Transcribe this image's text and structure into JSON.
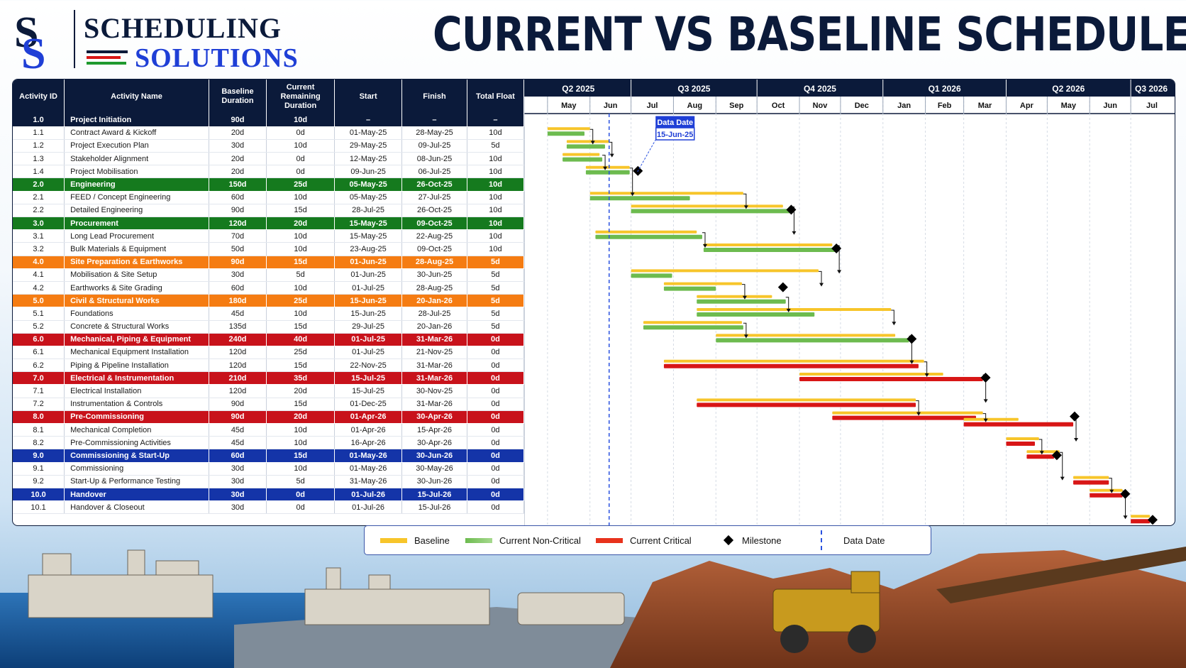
{
  "header": {
    "logo_top": "SCHEDULING",
    "logo_bottom": "SOLUTIONS",
    "title": "CURRENT VS BASELINE SCHEDULE"
  },
  "colors": {
    "navy": "#0b1a3a",
    "baseline": "#f7c52a",
    "noncritical": "#6dbb4f",
    "critical": "#d81616",
    "data_date": "#2a52e0"
  },
  "table": {
    "headers": [
      "Activity ID",
      "Activity Name",
      "Baseline Duration",
      "Current Remaining Duration",
      "Start",
      "Finish",
      "Total Float"
    ],
    "rows": [
      {
        "id": "1.0",
        "name": "Project Initiation",
        "bdur": "90d",
        "crd": "10d",
        "start": "–",
        "finish": "–",
        "float": "–",
        "summary": true,
        "color": "navy"
      },
      {
        "id": "1.1",
        "name": "Contract Award & Kickoff",
        "bdur": "20d",
        "crd": "0d",
        "start": "01-May-25",
        "finish": "28-May-25",
        "float": "10d"
      },
      {
        "id": "1.2",
        "name": "Project Execution Plan",
        "bdur": "30d",
        "crd": "10d",
        "start": "29-May-25",
        "finish": "09-Jul-25",
        "float": "5d"
      },
      {
        "id": "1.3",
        "name": "Stakeholder Alignment",
        "bdur": "20d",
        "crd": "0d",
        "start": "12-May-25",
        "finish": "08-Jun-25",
        "float": "10d"
      },
      {
        "id": "1.4",
        "name": "Project Mobilisation",
        "bdur": "20d",
        "crd": "0d",
        "start": "09-Jun-25",
        "finish": "06-Jul-25",
        "float": "10d"
      },
      {
        "id": "2.0",
        "name": "Engineering",
        "bdur": "150d",
        "crd": "25d",
        "start": "05-May-25",
        "finish": "26-Oct-25",
        "float": "10d",
        "summary": true,
        "color": "green"
      },
      {
        "id": "2.1",
        "name": "FEED / Concept Engineering",
        "bdur": "60d",
        "crd": "10d",
        "start": "05-May-25",
        "finish": "27-Jul-25",
        "float": "10d"
      },
      {
        "id": "2.2",
        "name": "Detailed Engineering",
        "bdur": "90d",
        "crd": "15d",
        "start": "28-Jul-25",
        "finish": "26-Oct-25",
        "float": "10d"
      },
      {
        "id": "3.0",
        "name": "Procurement",
        "bdur": "120d",
        "crd": "20d",
        "start": "15-May-25",
        "finish": "09-Oct-25",
        "float": "10d",
        "summary": true,
        "color": "green"
      },
      {
        "id": "3.1",
        "name": "Long Lead Procurement",
        "bdur": "70d",
        "crd": "10d",
        "start": "15-May-25",
        "finish": "22-Aug-25",
        "float": "10d"
      },
      {
        "id": "3.2",
        "name": "Bulk Materials & Equipment",
        "bdur": "50d",
        "crd": "10d",
        "start": "23-Aug-25",
        "finish": "09-Oct-25",
        "float": "10d"
      },
      {
        "id": "4.0",
        "name": "Site Preparation & Earthworks",
        "bdur": "90d",
        "crd": "15d",
        "start": "01-Jun-25",
        "finish": "28-Aug-25",
        "float": "5d",
        "summary": true,
        "color": "orange"
      },
      {
        "id": "4.1",
        "name": "Mobilisation & Site Setup",
        "bdur": "30d",
        "crd": "5d",
        "start": "01-Jun-25",
        "finish": "30-Jun-25",
        "float": "5d"
      },
      {
        "id": "4.2",
        "name": "Earthworks & Site Grading",
        "bdur": "60d",
        "crd": "10d",
        "start": "01-Jul-25",
        "finish": "28-Aug-25",
        "float": "5d"
      },
      {
        "id": "5.0",
        "name": "Civil & Structural Works",
        "bdur": "180d",
        "crd": "25d",
        "start": "15-Jun-25",
        "finish": "20-Jan-26",
        "float": "5d",
        "summary": true,
        "color": "orange"
      },
      {
        "id": "5.1",
        "name": "Foundations",
        "bdur": "45d",
        "crd": "10d",
        "start": "15-Jun-25",
        "finish": "28-Jul-25",
        "float": "5d"
      },
      {
        "id": "5.2",
        "name": "Concrete & Structural Works",
        "bdur": "135d",
        "crd": "15d",
        "start": "29-Jul-25",
        "finish": "20-Jan-26",
        "float": "5d"
      },
      {
        "id": "6.0",
        "name": "Mechanical, Piping & Equipment",
        "bdur": "240d",
        "crd": "40d",
        "start": "01-Jul-25",
        "finish": "31-Mar-26",
        "float": "0d",
        "summary": true,
        "color": "red"
      },
      {
        "id": "6.1",
        "name": "Mechanical Equipment Installation",
        "bdur": "120d",
        "crd": "25d",
        "start": "01-Jul-25",
        "finish": "21-Nov-25",
        "float": "0d"
      },
      {
        "id": "6.2",
        "name": "Piping & Pipeline Installation",
        "bdur": "120d",
        "crd": "15d",
        "start": "22-Nov-25",
        "finish": "31-Mar-26",
        "float": "0d"
      },
      {
        "id": "7.0",
        "name": "Electrical & Instrumentation",
        "bdur": "210d",
        "crd": "35d",
        "start": "15-Jul-25",
        "finish": "31-Mar-26",
        "float": "0d",
        "summary": true,
        "color": "red"
      },
      {
        "id": "7.1",
        "name": "Electrical Installation",
        "bdur": "120d",
        "crd": "20d",
        "start": "15-Jul-25",
        "finish": "30-Nov-25",
        "float": "0d"
      },
      {
        "id": "7.2",
        "name": "Instrumentation & Controls",
        "bdur": "90d",
        "crd": "15d",
        "start": "01-Dec-25",
        "finish": "31-Mar-26",
        "float": "0d"
      },
      {
        "id": "8.0",
        "name": "Pre-Commissioning",
        "bdur": "90d",
        "crd": "20d",
        "start": "01-Apr-26",
        "finish": "30-Apr-26",
        "float": "0d",
        "summary": true,
        "color": "red"
      },
      {
        "id": "8.1",
        "name": "Mechanical Completion",
        "bdur": "45d",
        "crd": "10d",
        "start": "01-Apr-26",
        "finish": "15-Apr-26",
        "float": "0d"
      },
      {
        "id": "8.2",
        "name": "Pre-Commissioning Activities",
        "bdur": "45d",
        "crd": "10d",
        "start": "16-Apr-26",
        "finish": "30-Apr-26",
        "float": "0d"
      },
      {
        "id": "9.0",
        "name": "Commissioning & Start-Up",
        "bdur": "60d",
        "crd": "15d",
        "start": "01-May-26",
        "finish": "30-Jun-26",
        "float": "0d",
        "summary": true,
        "color": "blue"
      },
      {
        "id": "9.1",
        "name": "Commissioning",
        "bdur": "30d",
        "crd": "10d",
        "start": "01-May-26",
        "finish": "30-May-26",
        "float": "0d"
      },
      {
        "id": "9.2",
        "name": "Start-Up & Performance Testing",
        "bdur": "30d",
        "crd": "5d",
        "start": "31-May-26",
        "finish": "30-Jun-26",
        "float": "0d"
      },
      {
        "id": "10.0",
        "name": "Handover",
        "bdur": "30d",
        "crd": "0d",
        "start": "01-Jul-26",
        "finish": "15-Jul-26",
        "float": "0d",
        "summary": true,
        "color": "blue"
      },
      {
        "id": "10.1",
        "name": "Handover & Closeout",
        "bdur": "30d",
        "crd": "0d",
        "start": "01-Jul-26",
        "finish": "15-Jul-26",
        "float": "0d"
      }
    ]
  },
  "chart_data": {
    "type": "gantt",
    "quarters": [
      "Q2 2025",
      "Q3 2025",
      "Q4 2025",
      "Q1 2026",
      "Q2 2026",
      "Q3 2026"
    ],
    "months": [
      "May",
      "Jun",
      "Jul",
      "Aug",
      "Sep",
      "Oct",
      "Nov",
      "Dec",
      "Jan",
      "Feb",
      "Mar",
      "Apr",
      "May",
      "Jun",
      "Jul"
    ],
    "data_date_label": "Data Date",
    "data_date": "15-Jun-25",
    "tasks": [
      {
        "row": 1,
        "baseline": [
          "2025-05-01",
          "2025-06-01"
        ],
        "current": [
          "2025-05-01",
          "2025-05-28"
        ],
        "status": "noncritical"
      },
      {
        "row": 2,
        "baseline": [
          "2025-05-15",
          "2025-06-15"
        ],
        "current": [
          "2025-05-15",
          "2025-06-12"
        ],
        "status": "noncritical"
      },
      {
        "row": 3,
        "baseline": [
          "2025-05-12",
          "2025-06-08"
        ],
        "current": [
          "2025-05-12",
          "2025-06-10"
        ],
        "status": "noncritical"
      },
      {
        "row": 4,
        "baseline": [
          "2025-05-29",
          "2025-06-30"
        ],
        "current": [
          "2025-05-29",
          "2025-06-30"
        ],
        "status": "noncritical"
      },
      {
        "row": 6,
        "baseline": [
          "2025-06-01",
          "2025-09-21"
        ],
        "current": [
          "2025-06-01",
          "2025-08-13"
        ],
        "status": "noncritical"
      },
      {
        "row": 7,
        "baseline": [
          "2025-07-01",
          "2025-10-20"
        ],
        "current": [
          "2025-07-01",
          "2025-10-26"
        ],
        "status": "noncritical"
      },
      {
        "row": 9,
        "baseline": [
          "2025-06-05",
          "2025-08-18"
        ],
        "current": [
          "2025-06-05",
          "2025-08-22"
        ],
        "status": "noncritical"
      },
      {
        "row": 10,
        "baseline": [
          "2025-08-23",
          "2025-11-25"
        ],
        "current": [
          "2025-08-23",
          "2025-11-28"
        ],
        "status": "noncritical"
      },
      {
        "row": 12,
        "baseline": [
          "2025-07-01",
          "2025-11-15"
        ],
        "current": [
          "2025-07-01",
          "2025-07-31"
        ],
        "status": "noncritical"
      },
      {
        "row": 13,
        "baseline": [
          "2025-07-25",
          "2025-09-20"
        ],
        "current": [
          "2025-07-25",
          "2025-09-01"
        ],
        "status": "noncritical"
      },
      {
        "row": 14,
        "baseline": [
          "2025-08-18",
          "2025-10-12"
        ],
        "current": [
          "2025-08-18",
          "2025-10-22"
        ],
        "status": "noncritical"
      },
      {
        "row": 15,
        "baseline": [
          "2025-08-18",
          "2026-01-07"
        ],
        "current": [
          "2025-08-18",
          "2025-11-12"
        ],
        "status": "noncritical"
      },
      {
        "row": 16,
        "baseline": [
          "2025-07-10",
          "2025-09-20"
        ],
        "current": [
          "2025-07-10",
          "2025-09-21"
        ],
        "status": "noncritical"
      },
      {
        "row": 17,
        "baseline": [
          "2025-09-01",
          "2026-01-10"
        ],
        "current": [
          "2025-09-01",
          "2026-01-20"
        ],
        "status": "noncritical"
      },
      {
        "row": 19,
        "baseline": [
          "2025-07-25",
          "2026-01-31"
        ],
        "current": [
          "2025-07-25",
          "2026-01-27"
        ],
        "status": "critical"
      },
      {
        "row": 20,
        "baseline": [
          "2025-11-01",
          "2026-02-14"
        ],
        "current": [
          "2025-11-01",
          "2026-03-15"
        ],
        "status": "critical"
      },
      {
        "row": 22,
        "baseline": [
          "2025-08-18",
          "2026-01-25"
        ],
        "current": [
          "2025-08-18",
          "2026-01-25"
        ],
        "status": "critical"
      },
      {
        "row": 23,
        "baseline": [
          "2025-11-25",
          "2026-03-15"
        ],
        "current": [
          "2025-11-25",
          "2026-03-10"
        ],
        "status": "critical"
      },
      {
        "row": 23.5,
        "baseline": [
          "2026-03-01",
          "2026-04-10"
        ],
        "current": [
          "2026-03-01",
          "2026-05-20"
        ],
        "status": "critical"
      },
      {
        "row": 25,
        "baseline": [
          "2026-04-01",
          "2026-04-25"
        ],
        "current": [
          "2026-04-01",
          "2026-04-22"
        ],
        "status": "critical"
      },
      {
        "row": 26,
        "baseline": [
          "2026-04-16",
          "2026-05-10"
        ],
        "current": [
          "2026-04-16",
          "2026-05-06"
        ],
        "status": "critical"
      },
      {
        "row": 28,
        "baseline": [
          "2026-05-20",
          "2026-06-15"
        ],
        "current": [
          "2026-05-20",
          "2026-06-15"
        ],
        "status": "critical"
      },
      {
        "row": 29,
        "baseline": [
          "2026-06-01",
          "2026-06-25"
        ],
        "current": [
          "2026-06-01",
          "2026-06-25"
        ],
        "status": "critical"
      },
      {
        "row": 31,
        "baseline": [
          "2026-07-01",
          "2026-07-15"
        ],
        "current": [
          "2026-07-01",
          "2026-07-15"
        ],
        "status": "critical"
      }
    ],
    "milestones": [
      {
        "row": 4,
        "date": "2025-07-06"
      },
      {
        "row": 7,
        "date": "2025-10-26"
      },
      {
        "row": 10,
        "date": "2025-11-28"
      },
      {
        "row": 13,
        "date": "2025-10-20"
      },
      {
        "row": 17,
        "date": "2026-01-22"
      },
      {
        "row": 20,
        "date": "2026-03-17"
      },
      {
        "row": 23,
        "date": "2026-05-21"
      },
      {
        "row": 26,
        "date": "2026-05-08"
      },
      {
        "row": 29,
        "date": "2026-06-27"
      },
      {
        "row": 31,
        "date": "2026-07-17"
      }
    ]
  },
  "legend": {
    "baseline": "Baseline",
    "noncritical": "Current Non-Critical",
    "critical": "Current Critical",
    "milestone": "Milestone",
    "data_date": "Data Date"
  }
}
